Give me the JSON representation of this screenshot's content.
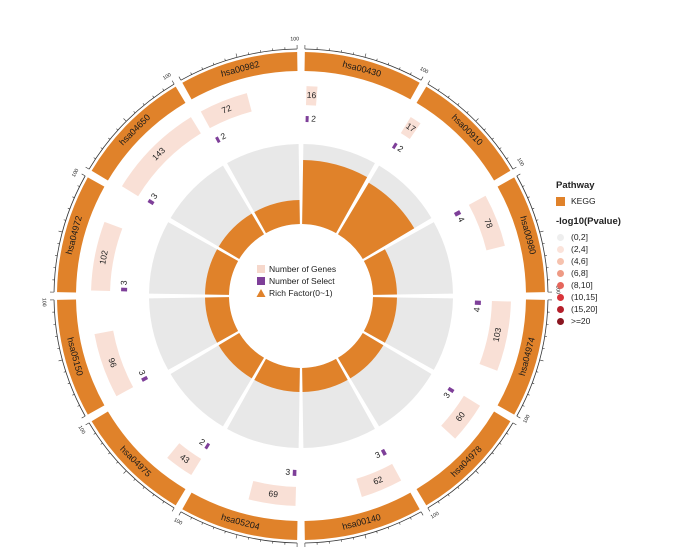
{
  "chart_data": {
    "type": "circos",
    "title": "",
    "pathways": [
      {
        "id": "hsa00430",
        "genes": 16,
        "select": 2,
        "rich_factor": 0.8,
        "pvalue_bin": "(2,4]"
      },
      {
        "id": "hsa00910",
        "genes": 17,
        "select": 2,
        "rich_factor": 0.75,
        "pvalue_bin": "(2,4]"
      },
      {
        "id": "hsa00980",
        "genes": 78,
        "select": 4,
        "rich_factor": 0.3,
        "pvalue_bin": "(2,4]"
      },
      {
        "id": "hsa04974",
        "genes": 103,
        "select": 4,
        "rich_factor": 0.3,
        "pvalue_bin": "(2,4]"
      },
      {
        "id": "hsa04978",
        "genes": 60,
        "select": 3,
        "rich_factor": 0.3,
        "pvalue_bin": "(2,4]"
      },
      {
        "id": "hsa00140",
        "genes": 62,
        "select": 3,
        "rich_factor": 0.3,
        "pvalue_bin": "(2,4]"
      },
      {
        "id": "hsa05204",
        "genes": 69,
        "select": 3,
        "rich_factor": 0.3,
        "pvalue_bin": "(2,4]"
      },
      {
        "id": "hsa04975",
        "genes": 43,
        "select": 2,
        "rich_factor": 0.3,
        "pvalue_bin": "(2,4]"
      },
      {
        "id": "hsa05150",
        "genes": 96,
        "select": 3,
        "rich_factor": 0.3,
        "pvalue_bin": "(2,4]"
      },
      {
        "id": "hsa04972",
        "genes": 102,
        "select": 3,
        "rich_factor": 0.3,
        "pvalue_bin": "(2,4]"
      },
      {
        "id": "hsa04650",
        "genes": 143,
        "select": 3,
        "rich_factor": 0.3,
        "pvalue_bin": "(2,4]"
      },
      {
        "id": "hsa00982",
        "genes": 72,
        "select": 2,
        "rich_factor": 0.3,
        "pvalue_bin": "(2,4]"
      }
    ],
    "select_labels": [
      "2",
      "2",
      "4",
      "4",
      "3",
      "3",
      "3",
      "2",
      "3",
      "3",
      "3",
      "2"
    ],
    "axis_tick_label": "100",
    "axis_max": 100,
    "genes_track_max": 150,
    "select_track_max": 4,
    "center_legend": [
      {
        "label": "Number of Genes",
        "color": "#f6d8cc",
        "shape": "square"
      },
      {
        "label": "Number of Select",
        "color": "#7e3f99",
        "shape": "square"
      },
      {
        "label": "Rich Factor(0~1)",
        "color": "#e0822a",
        "shape": "triangle"
      }
    ],
    "legend": {
      "pathway_title": "Pathway",
      "pathway_items": [
        {
          "label": "KEGG",
          "color": "#e0822a"
        }
      ],
      "pvalue_title": "-log10(Pvalue)",
      "pvalue_bins": [
        {
          "label": "(0,2]",
          "color": "#eeeeee"
        },
        {
          "label": "(2,4]",
          "color": "#fbe3da"
        },
        {
          "label": "(4,6]",
          "color": "#f6c2ae"
        },
        {
          "label": "(6,8]",
          "color": "#ee9a84"
        },
        {
          "label": "(8,10]",
          "color": "#e5665c"
        },
        {
          "label": "(10,15]",
          "color": "#d9343a"
        },
        {
          "label": "(15,20]",
          "color": "#b51f2a"
        },
        {
          "label": ">=20",
          "color": "#8a1620"
        }
      ]
    },
    "colors": {
      "kegg": "#e0822a",
      "genes_bar": "#f9e0d6",
      "select_bar": "#7e3f99",
      "rich_bg": "#e8e8e8"
    }
  }
}
